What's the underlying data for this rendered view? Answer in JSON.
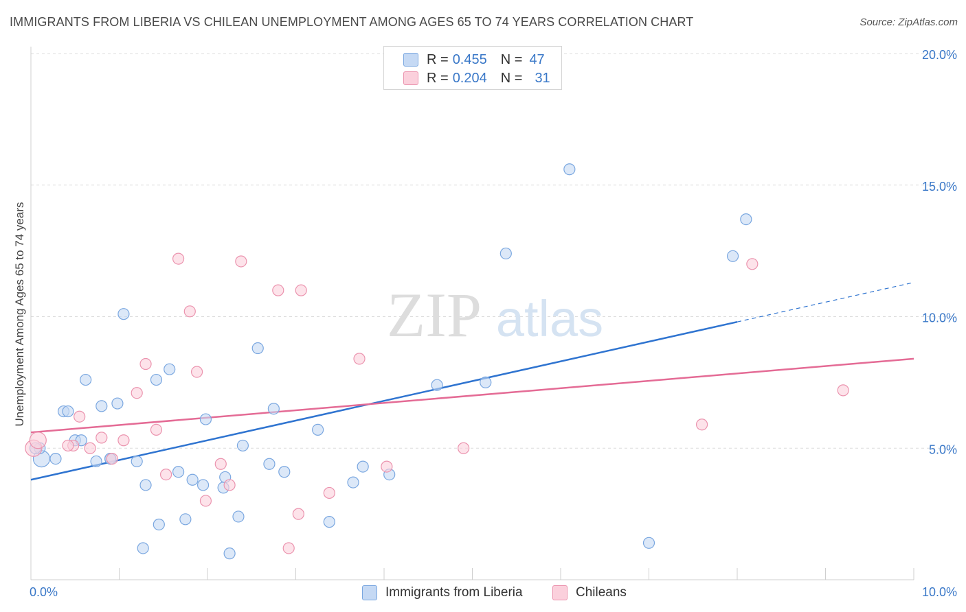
{
  "title": "IMMIGRANTS FROM LIBERIA VS CHILEAN UNEMPLOYMENT AMONG AGES 65 TO 74 YEARS CORRELATION CHART",
  "source": "Source: ZipAtlas.com",
  "watermark": {
    "zip": "ZIP",
    "atlas": "atlas"
  },
  "legend": {
    "series1": {
      "r_label": "R =",
      "r_value": "0.455",
      "n_label": "N =",
      "n_value": "47"
    },
    "series2": {
      "r_label": "R =",
      "r_value": "0.204",
      "n_label": "N =",
      "n_value": "31"
    }
  },
  "bottom_legend": {
    "series1": "Immigrants from Liberia",
    "series2": "Chileans"
  },
  "colors": {
    "blue_fill": "#c5d9f4",
    "blue_stroke": "#7aa7e0",
    "blue_line": "#2f74d0",
    "pink_fill": "#fbd0dc",
    "pink_stroke": "#eb93ae",
    "pink_line": "#e46b95",
    "axis_text": "#3a78c8",
    "grid": "#dcdcdc"
  },
  "chart_data": {
    "type": "scatter",
    "title": "IMMIGRANTS FROM LIBERIA VS CHILEAN UNEMPLOYMENT AMONG AGES 65 TO 74 YEARS CORRELATION CHART",
    "xlabel": "",
    "ylabel": "Unemployment Among Ages 65 to 74 years",
    "xlim": [
      0,
      10
    ],
    "ylim": [
      0,
      20
    ],
    "x_tick_labels": [
      {
        "value": 0,
        "label": "0.0%"
      },
      {
        "value": 10,
        "label": "10.0%"
      }
    ],
    "y_tick_labels": [
      {
        "value": 5,
        "label": "5.0%"
      },
      {
        "value": 10,
        "label": "10.0%"
      },
      {
        "value": 15,
        "label": "15.0%"
      },
      {
        "value": 20,
        "label": "20.0%"
      }
    ],
    "series": [
      {
        "name": "Immigrants from Liberia",
        "color": "blue",
        "points": [
          [
            0.12,
            4.6
          ],
          [
            0.28,
            4.6
          ],
          [
            0.37,
            6.4
          ],
          [
            0.42,
            6.4
          ],
          [
            0.5,
            5.3
          ],
          [
            0.57,
            5.3
          ],
          [
            0.62,
            7.6
          ],
          [
            0.74,
            4.5
          ],
          [
            0.8,
            6.6
          ],
          [
            0.9,
            4.6
          ],
          [
            0.98,
            6.7
          ],
          [
            1.05,
            10.1
          ],
          [
            1.2,
            4.5
          ],
          [
            1.3,
            3.6
          ],
          [
            1.42,
            7.6
          ],
          [
            1.57,
            8.0
          ],
          [
            1.67,
            4.1
          ],
          [
            1.45,
            2.1
          ],
          [
            1.75,
            2.3
          ],
          [
            1.83,
            3.8
          ],
          [
            1.95,
            3.6
          ],
          [
            1.98,
            6.1
          ],
          [
            2.18,
            3.5
          ],
          [
            2.2,
            3.9
          ],
          [
            2.25,
            1.0
          ],
          [
            2.35,
            2.4
          ],
          [
            2.4,
            5.1
          ],
          [
            2.57,
            8.8
          ],
          [
            2.7,
            4.4
          ],
          [
            2.75,
            6.5
          ],
          [
            2.87,
            4.1
          ],
          [
            3.25,
            5.7
          ],
          [
            3.38,
            2.2
          ],
          [
            3.65,
            3.7
          ],
          [
            3.76,
            4.3
          ],
          [
            4.06,
            4.0
          ],
          [
            4.6,
            7.4
          ],
          [
            5.15,
            7.5
          ],
          [
            5.38,
            12.4
          ],
          [
            6.1,
            15.6
          ],
          [
            7.0,
            1.4
          ],
          [
            7.95,
            12.3
          ],
          [
            8.1,
            13.7
          ],
          [
            1.27,
            1.2
          ],
          [
            0.1,
            5.0
          ],
          [
            0.05,
            5.0
          ],
          [
            0.9,
            4.6
          ]
        ]
      },
      {
        "name": "Chileans",
        "color": "pink",
        "points": [
          [
            0.03,
            5.0
          ],
          [
            0.08,
            5.3
          ],
          [
            0.48,
            5.1
          ],
          [
            0.55,
            6.2
          ],
          [
            0.67,
            5.0
          ],
          [
            0.8,
            5.4
          ],
          [
            0.92,
            4.6
          ],
          [
            1.05,
            5.3
          ],
          [
            1.2,
            7.1
          ],
          [
            1.3,
            8.2
          ],
          [
            1.42,
            5.7
          ],
          [
            1.53,
            4.0
          ],
          [
            1.67,
            12.2
          ],
          [
            1.8,
            10.2
          ],
          [
            1.88,
            7.9
          ],
          [
            1.98,
            3.0
          ],
          [
            2.15,
            4.4
          ],
          [
            2.25,
            3.6
          ],
          [
            2.38,
            12.1
          ],
          [
            2.8,
            11.0
          ],
          [
            2.92,
            1.2
          ],
          [
            3.03,
            2.5
          ],
          [
            3.06,
            11.0
          ],
          [
            3.38,
            3.3
          ],
          [
            3.72,
            8.4
          ],
          [
            4.03,
            4.3
          ],
          [
            4.9,
            5.0
          ],
          [
            7.6,
            5.9
          ],
          [
            8.17,
            12.0
          ],
          [
            9.2,
            7.2
          ],
          [
            0.42,
            5.1
          ]
        ]
      }
    ],
    "trendlines": [
      {
        "series": "Immigrants from Liberia",
        "x_start": 0,
        "y_start": 3.8,
        "x_end": 8.0,
        "y_end": 9.8,
        "dashed_to_x": 10.0,
        "dashed_to_y": 11.3
      },
      {
        "series": "Chileans",
        "x_start": 0,
        "y_start": 5.6,
        "x_end": 10.0,
        "y_end": 8.4
      }
    ],
    "grid": true,
    "legend_position": "top-center"
  }
}
